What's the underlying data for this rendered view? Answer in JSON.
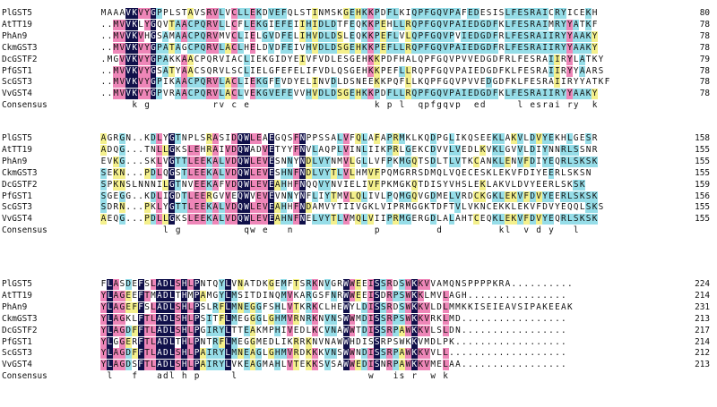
{
  "alignment": {
    "consensus_label": "Consensus",
    "blocks": [
      {
        "rows": [
          {
            "name": "PlGST5",
            "seq": "MAAAVKVYGPPLSTAVSRVLVCLLEKDVEFQLSTINMSKGEHKKPDFLKIQPFGQVPAFEDESISLFESRAICRYICEKH",
            "end": "80"
          },
          {
            "name": "AtTT19",
            "seq": "..MVVKLYGQVTAACPQRVLLCFLEKGIEFEIIHIDLDTFEQKKPEHLLRQPFGQVPAIEDGDFKLFESRAIMRYYATKF",
            "end": "78"
          },
          {
            "name": "PhAn9",
            "seq": "..MVVKVHGSAMAACPQRVMVCLIELGVDFELIHVDLDSLEQKKPEFLVLQPFGQVPVIEDGDFRLFESRAIIRYYAAKY",
            "end": "78"
          },
          {
            "name": "CkmGST3",
            "seq": "..MVVKVYGPATAGCPQRVLACLHELDVDFEIVHVDLDSGEHKKPEFLLRQPFGQVPAIEDGDFRLFESRAIIRYYAAKY",
            "end": "78"
          },
          {
            "name": "DcGSTF2",
            "seq": ".MGVVKVYGPAKKAACPQRVIACLIEKGIDYEIVFVDLESGEHKKPDFHALQPFGQVPVVEDGDFRLFESRAIIRYLATKY",
            "end": "79"
          },
          {
            "name": "PfGST1",
            "seq": "..MVVKVYGSATYAACSQRVLSCLIELGFEFELIFVDLQSGEHKKPEFLLRQPFGQVPAIEDGDFKLFESRAIIRYYAARS",
            "end": "78"
          },
          {
            "name": "ScGST3",
            "seq": "..MVVKVYGPIKAACPQRVLACLIEKGFEVDYELINVDLDSNEEKKPQFLLKQPFGQVPVVEDGDFKLFESRAIIRYYATKF",
            "end": "78"
          },
          {
            "name": "VvGST4",
            "seq": "..MVVKVYGPVRAACPQRVLACLVEKGVEFEVVHVDLDSGEHKKPDFLLRQPFGQVPAIEDGDFKLFESRAIIRYYAAKY",
            "end": "78"
          },
          {
            "name": "Consensus",
            "seq": "     k g          rv c e                    k p l  qpfgqvp  ed     l esrai ry  k  ",
            "end": ""
          }
        ]
      },
      {
        "rows": [
          {
            "name": "PlGST5",
            "seq": "AGRGN..KDLYGTNPLSRASIDQWLEAEGQSFNPPSSALVFQLAFAPRMKLKQDPGLIKQSEEKLAKVLDVYEKHLGESR",
            "end": "158"
          },
          {
            "name": "AtTT19",
            "seq": "ADQG...TNLLGKSLEHRAIVDQWADVETYYFNVLAQPLVINLIIKPRLGEKCDVVLVEDLKVKLGVVLDIYNNRLSSNR",
            "end": "155"
          },
          {
            "name": "PhAn9",
            "seq": "EVKG...SKLVGTTLEEKALVDQWLEVESNNYNDLVYNMVLGLLVFPKMGQTSDLTLVTKCANKLENVFDIYEQRLSKSK",
            "end": "155"
          },
          {
            "name": "CkmGST3",
            "seq": "SEKN...PDLQGSTLEEKALVDQWLEVESHNFNDLVYTLVLHMVFPQMGRRSDMQLVQECESKLEKVFDIYEERLSKSN",
            "end": "155"
          },
          {
            "name": "DcGSTF2",
            "seq": "SPKNSLNNNILGTNVEEKAFVDQWLEVEAHHFNQQVYNVIELIVFPKMGKQTDISYVHSLEKLAKVLDVYEERLSKSK",
            "end": "159"
          },
          {
            "name": "PfGST1",
            "seq": "SGEGG..KDLIGDTLEERGVVEQWVEVEVNNYNFLIYTMVLQLIVLPQMGQVGDMELVRDCKGKLEKVFDVYEERLSKSK",
            "end": "156"
          },
          {
            "name": "ScGST3",
            "seq": "SDRN...PKLYGTTLEEKALVDQWLEVEAHHFNDAMVYTIIVGKLVIPRMGGKTDFTVLVKNCEKKLEKVFDVYEQQLSKS",
            "end": "155"
          },
          {
            "name": "VvGST4",
            "seq": "AEQG...PDLLGKSLEEKALVDQWLEVEAHNFNELVYTLVMQLVIIPRMGERGDLALAHTCEQKLEKVFDVYEQRLSKSK",
            "end": "155"
          },
          {
            "name": "Consensus",
            "seq": "          l g          qw e   n             p         d         kl  v d y   l     ",
            "end": ""
          }
        ]
      },
      {
        "rows": [
          {
            "name": "PlGST5",
            "seq": "FLASDEFSLADLSHLPNTQYLVNATDKGEMFTSRKNVGRWWEEISSRDSWKKVVAMQNSPPPPKRA..........",
            "end": "224"
          },
          {
            "name": "AtTT19",
            "seq": "YLAGEEFTMADLTHMPAMGYLMSITDINQMVKARGSFNRWWEEISDRPSWKKLMVLAGH................",
            "end": "214"
          },
          {
            "name": "PhAn9",
            "seq": "YLAGEFFSLADLSHLPSLRFLMNEGGFSHLVTKRKCLHEWYLDISSRDSWKKVLDLMMKKISEIEAVSIPAKEEAK",
            "end": "231"
          },
          {
            "name": "CkmGST3",
            "seq": "YLAGKLFTLADLSHLPSITFLMEGGGLGHMVRNRKNVNSWWMDISSRPSWKKVRKLMD.................",
            "end": "213"
          },
          {
            "name": "DcGSTF2",
            "seq": "YLAGDFFTLADLSHLPGIRYLTTEAKMPHIVEDLKCVNAWWTDISSRPAWKKVLSLDN.................",
            "end": "217"
          },
          {
            "name": "PfGST1",
            "seq": "YLGGERFTLADLTHLPNTRFLMEGGMEDLIKRRKNVNAWWHDISSRPSWKKVMDLPK..................",
            "end": "214"
          },
          {
            "name": "ScGST3",
            "seq": "YLAGDFFTLADLSHLPAIRYLMNEAGLGHMVRDKKKVNSWWNDISSRPAWKKVVLL...................",
            "end": "212"
          },
          {
            "name": "VvGST4",
            "seq": "YLAGDSFTLADLSHLPAIRYLVKEAGMAHLVTEKKSVSAWWEDISNRPAWKKVMELAA.................",
            "end": "213"
          },
          {
            "name": "Consensus",
            "seq": " l   f   adl h p     l                     w   is r  w k                    ",
            "end": ""
          }
        ]
      }
    ]
  },
  "colors": {
    "identical": "#10104a",
    "high": "#ee86b8",
    "medium": "#96dde8",
    "low": "#f4f08c"
  }
}
